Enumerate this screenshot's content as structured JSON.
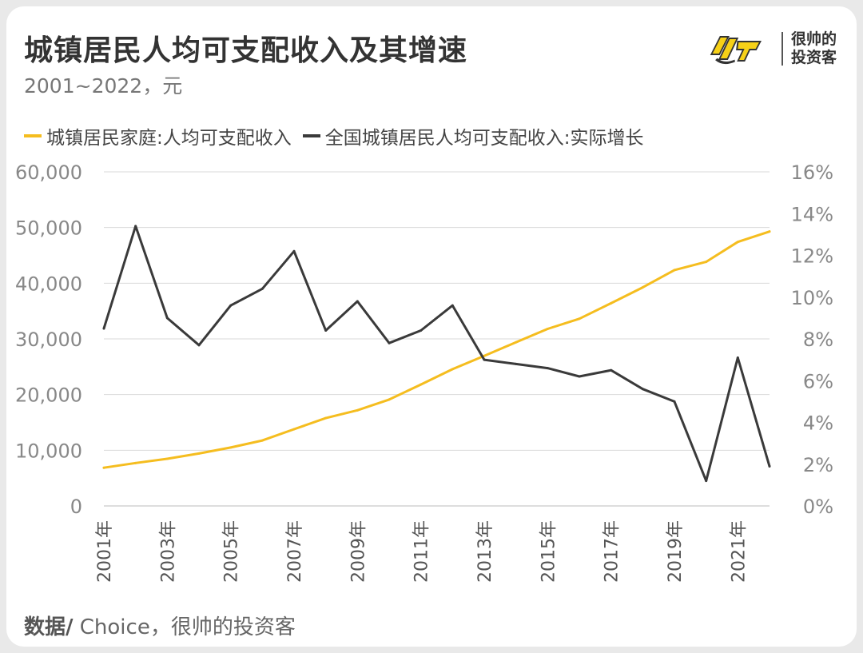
{
  "header": {
    "title": "城镇居民人均可支配收入及其增速",
    "subtitle": "2001~2022，元"
  },
  "logo": {
    "line1": "很帅的",
    "line2": "投资客",
    "mark_icon": "ysh-logo-icon",
    "mark_color": "#f7d117"
  },
  "footer": {
    "source_label": "数据/",
    "source_text": " Choice，很帅的投资客"
  },
  "colors": {
    "income": "#f5bd1f",
    "growth": "#3a3a3a",
    "grid": "#d9d9d9",
    "axis_text": "#888888"
  },
  "chart_data": {
    "type": "line",
    "x": [
      "2001年",
      "2002年",
      "2003年",
      "2004年",
      "2005年",
      "2006年",
      "2007年",
      "2008年",
      "2009年",
      "2010年",
      "2011年",
      "2012年",
      "2013年",
      "2014年",
      "2015年",
      "2016年",
      "2017年",
      "2018年",
      "2019年",
      "2020年",
      "2021年",
      "2022年"
    ],
    "x_tick_labels": [
      "2001年",
      "",
      "2003年",
      "",
      "2005年",
      "",
      "2007年",
      "",
      "2009年",
      "",
      "2011年",
      "",
      "2013年",
      "",
      "2015年",
      "",
      "2017年",
      "",
      "2019年",
      "",
      "2021年",
      ""
    ],
    "series": [
      {
        "name": "城镇居民家庭:人均可支配收入",
        "axis": "left",
        "values": [
          6860,
          7703,
          8472,
          9422,
          10493,
          11759,
          13786,
          15781,
          17175,
          19109,
          21810,
          24565,
          26955,
          29381,
          31790,
          33616,
          36396,
          39251,
          42359,
          43834,
          47412,
          49283
        ]
      },
      {
        "name": "全国城镇居民人均可支配收入:实际增长",
        "axis": "right",
        "values": [
          8.5,
          13.4,
          9.0,
          7.7,
          9.6,
          10.4,
          12.2,
          8.4,
          9.8,
          7.8,
          8.4,
          9.6,
          7.0,
          6.8,
          6.6,
          6.2,
          6.5,
          5.6,
          5.0,
          1.2,
          7.1,
          1.9
        ]
      }
    ],
    "y_left": {
      "ticks": [
        "0",
        "10,000",
        "20,000",
        "30,000",
        "40,000",
        "50,000",
        "60,000"
      ],
      "ylim": [
        0,
        60000
      ]
    },
    "y_right": {
      "ticks": [
        "0%",
        "2%",
        "4%",
        "6%",
        "8%",
        "10%",
        "12%",
        "14%",
        "16%"
      ],
      "ylim": [
        0,
        16
      ]
    },
    "grid": true,
    "legend_position": "top-left"
  }
}
